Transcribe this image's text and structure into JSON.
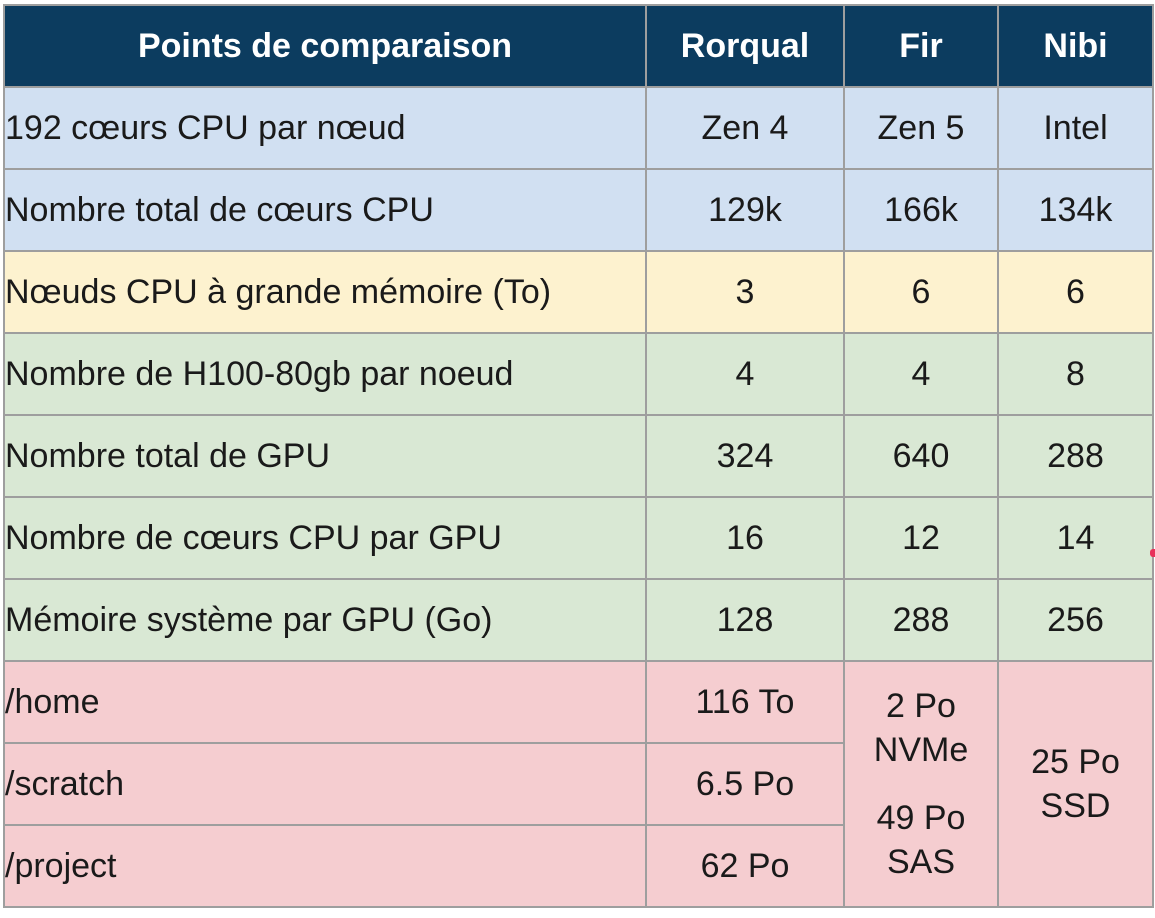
{
  "header": {
    "col0": "Points de comparaison",
    "col1": "Rorqual",
    "col2": "Fir",
    "col3": "Nibi"
  },
  "rows": [
    {
      "label": "192 cœurs CPU par nœud",
      "v1": "Zen 4",
      "v2": "Zen 5",
      "v3": "Intel"
    },
    {
      "label": "Nombre total de cœurs CPU",
      "v1": "129k",
      "v2": "166k",
      "v3": "134k"
    },
    {
      "label": "Nœuds CPU à grande mémoire (To)",
      "v1": "3",
      "v2": "6",
      "v3": "6"
    },
    {
      "label": "Nombre de H100-80gb par noeud",
      "v1": "4",
      "v2": "4",
      "v3": "8"
    },
    {
      "label": "Nombre total de GPU",
      "v1": "324",
      "v2": "640",
      "v3": "288"
    },
    {
      "label": "Nombre de cœurs CPU par GPU",
      "v1": "16",
      "v2": "12",
      "v3": "14"
    },
    {
      "label": "Mémoire système par GPU (Go)",
      "v1": "128",
      "v2": "288",
      "v3": "256"
    }
  ],
  "storage": {
    "home_label": "/home",
    "home_rorqual": "116 To",
    "scratch_label": "/scratch",
    "scratch_rorqual": "6.5 Po",
    "project_label": "/project",
    "project_rorqual": "62 Po",
    "fir_line1": "2 Po",
    "fir_line2": "NVMe",
    "fir_line3": "49 Po",
    "fir_line4": "SAS",
    "nibi_line1": "25 Po",
    "nibi_line2": "SSD"
  },
  "colors": {
    "header": "#0c3c5f",
    "blue_rows": "#d1e0f2",
    "yellow_rows": "#fdf2cf",
    "green_rows": "#d9e8d4",
    "red_rows": "#f5cdd0"
  }
}
